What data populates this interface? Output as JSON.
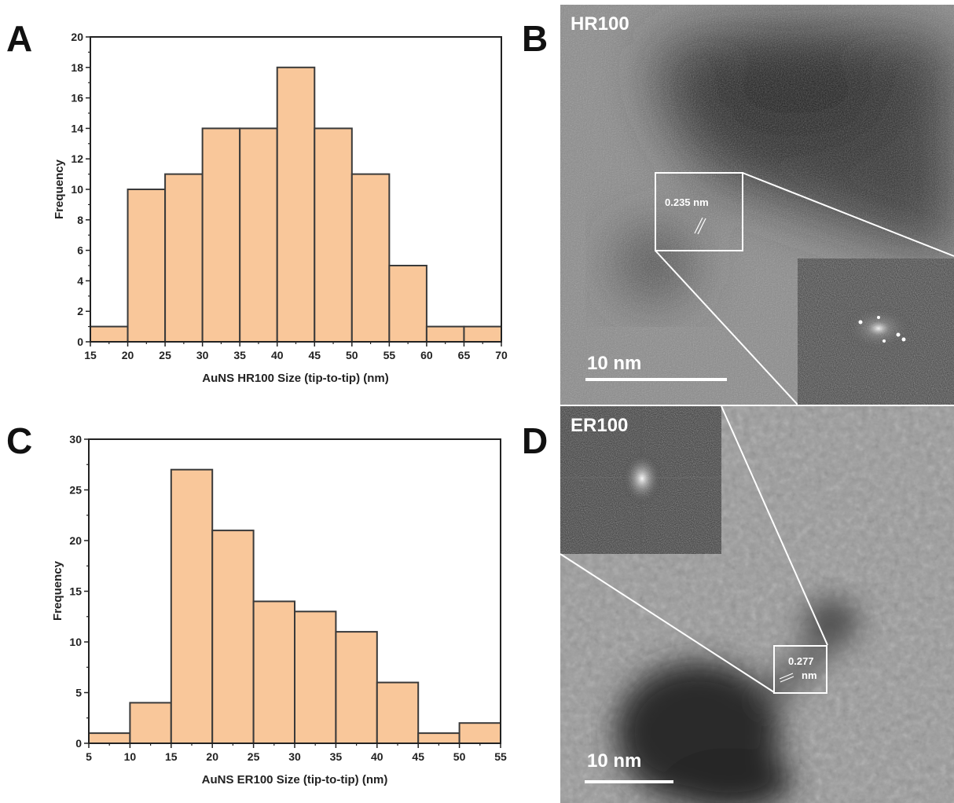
{
  "panels": {
    "a": "A",
    "b": "B",
    "c": "C",
    "d": "D"
  },
  "chart_data": [
    {
      "id": "A",
      "type": "bar",
      "xlabel": "AuNS HR100 Size (tip-to-tip) (nm)",
      "ylabel": "Frequency",
      "bin_edges": [
        15,
        20,
        25,
        30,
        35,
        40,
        45,
        50,
        55,
        60,
        65,
        70
      ],
      "values": [
        1,
        10,
        11,
        14,
        14,
        18,
        14,
        11,
        5,
        1,
        1
      ],
      "xlim": [
        15,
        70
      ],
      "ylim": [
        0,
        20
      ],
      "xticks": [
        15,
        20,
        25,
        30,
        35,
        40,
        45,
        50,
        55,
        60,
        65,
        70
      ],
      "yticks": [
        0,
        2,
        4,
        6,
        8,
        10,
        12,
        14,
        16,
        18,
        20
      ],
      "bar_color": "#f9c79a",
      "edge_color": "#3a3a3a"
    },
    {
      "id": "C",
      "type": "bar",
      "xlabel": "AuNS ER100 Size (tip-to-tip) (nm)",
      "ylabel": "Frequency",
      "bin_edges": [
        5,
        10,
        15,
        20,
        25,
        30,
        35,
        40,
        45,
        50,
        55
      ],
      "values": [
        1,
        4,
        27,
        21,
        14,
        13,
        11,
        6,
        1,
        2
      ],
      "xlim": [
        5,
        55
      ],
      "ylim": [
        0,
        30
      ],
      "xticks": [
        5,
        10,
        15,
        20,
        25,
        30,
        35,
        40,
        45,
        50,
        55
      ],
      "yticks": [
        0,
        5,
        10,
        15,
        20,
        25,
        30
      ],
      "bar_color": "#f9c79a",
      "edge_color": "#3a3a3a"
    }
  ],
  "tem": {
    "b": {
      "sample": "HR100",
      "lattice": "0.235 nm",
      "scale": "10 nm"
    },
    "d": {
      "sample": "ER100",
      "lattice_line1": "0.277",
      "lattice_line2": "nm",
      "scale": "10 nm"
    }
  }
}
